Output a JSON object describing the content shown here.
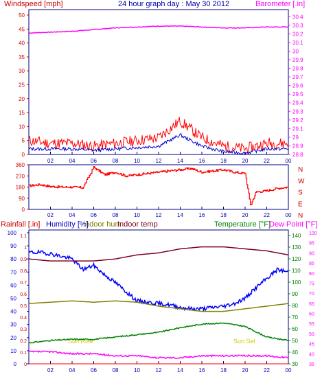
{
  "title": "24 hour graph day : May 30 2012",
  "hours": [
    "02",
    "04",
    "06",
    "08",
    "10",
    "12",
    "14",
    "16",
    "18",
    "20",
    "22",
    "00"
  ],
  "colors": {
    "wind": "#ff0000",
    "gust": "#ff0000",
    "avg": "#0000cc",
    "baro": "#ff00ff",
    "dir": "#ff0000",
    "humidity": "#0000ff",
    "indoor_hum": "#808000",
    "indoor_temp": "#800020",
    "temperature": "#008000",
    "dewpoint": "#ff00ff",
    "rain": "#ff0000",
    "axis_dark": "#000000",
    "frame": "#000080"
  },
  "chart_data": [
    {
      "type": "line",
      "panel": "wind-baro",
      "xlabel": "",
      "ylabel_left": "Windspeed [mph]",
      "ylabel_right": "Barometer [.in]",
      "y_left_ticks": [
        0,
        5,
        10,
        15,
        20,
        25,
        30,
        35,
        40,
        45,
        50
      ],
      "ylim_left": [
        0,
        50
      ],
      "y_right_ticks": [
        "28.8",
        "28.9",
        "29",
        "29.1",
        "29.2",
        "29.3",
        "29.4",
        "29.5",
        "29.6",
        "29.7",
        "29.8",
        "29.9",
        "30",
        "30.1",
        "30.2",
        "30.3",
        "30.4"
      ],
      "ylim_right": [
        28.8,
        30.45
      ],
      "series": [
        {
          "key": "barometer",
          "x": [
            0,
            2,
            4,
            6,
            8,
            10,
            12,
            14,
            16,
            18,
            20,
            22,
            24
          ],
          "y": [
            30.21,
            30.22,
            30.23,
            30.25,
            30.27,
            30.28,
            30.29,
            30.29,
            30.28,
            30.27,
            30.27,
            30.28,
            30.28
          ]
        },
        {
          "key": "gust",
          "x": [
            0,
            2,
            4,
            6,
            8,
            10,
            12,
            13,
            14,
            15,
            16,
            18,
            20,
            22,
            24
          ],
          "y": [
            5,
            4,
            4,
            3,
            4,
            5,
            6,
            9,
            12,
            9,
            6,
            3,
            2,
            4,
            4
          ]
        },
        {
          "key": "average",
          "x": [
            0,
            2,
            4,
            6,
            8,
            10,
            12,
            13,
            14,
            15,
            16,
            18,
            20,
            22,
            24
          ],
          "y": [
            2,
            2,
            2,
            1.5,
            2,
            2.5,
            3,
            5,
            7,
            5,
            3,
            1,
            0.5,
            2,
            2
          ]
        }
      ]
    },
    {
      "type": "line",
      "panel": "wind-direction",
      "y_ticks": [
        0,
        90,
        180,
        270,
        360
      ],
      "ylim": [
        0,
        360
      ],
      "compass": [
        "N",
        "W",
        "S",
        "E",
        "N"
      ],
      "series": [
        {
          "key": "direction",
          "x": [
            0,
            1,
            2,
            3,
            4,
            5,
            6,
            7,
            8,
            9,
            10,
            11,
            12,
            13,
            14,
            15,
            16,
            17,
            18,
            19,
            20,
            20.5,
            21,
            22,
            23,
            24
          ],
          "y": [
            190,
            200,
            185,
            180,
            180,
            175,
            340,
            280,
            300,
            270,
            280,
            290,
            300,
            310,
            320,
            330,
            300,
            310,
            320,
            300,
            290,
            30,
            140,
            150,
            170,
            180
          ]
        }
      ]
    },
    {
      "type": "line",
      "panel": "temp-hum-rain",
      "ylabel_rain": "Rainfall [.in]",
      "ylabel_humidity": "Humidity [%]",
      "ylabel_indoor_hum": "Indoor hum",
      "ylabel_indoor_temp": "Indoor temp",
      "ylabel_temperature": "Temperature [°F]",
      "ylabel_dewpoint": "Dew Point [°F]",
      "humidity_ticks": [
        0,
        10,
        20,
        30,
        40,
        50,
        60,
        70,
        80,
        90,
        100
      ],
      "rain_ticks": [
        "0",
        "0.1",
        "0.2",
        "0.3",
        "0.4",
        "0.5",
        "0.6",
        "0.7",
        "0.8",
        "0.9",
        "1",
        "1.1"
      ],
      "temperature_ticks": [
        30,
        40,
        50,
        60,
        70,
        80,
        90,
        100,
        110,
        120,
        130,
        140
      ],
      "dewpoint_ticks": [
        35,
        40,
        45,
        50,
        55,
        60,
        65,
        70,
        75,
        80,
        85,
        90,
        95,
        100
      ],
      "annotations": [
        "Sun Rise",
        "Sun Set"
      ],
      "series": [
        {
          "key": "humidity",
          "x": [
            0,
            1,
            2,
            3,
            4,
            5,
            6,
            7,
            8,
            9,
            10,
            11,
            12,
            13,
            14,
            15,
            16,
            17,
            18,
            19,
            20,
            21,
            22,
            23,
            24
          ],
          "y": [
            85,
            85,
            84,
            82,
            80,
            72,
            75,
            68,
            62,
            55,
            48,
            47,
            46,
            45,
            43,
            42,
            42,
            43,
            44,
            46,
            50,
            58,
            65,
            72,
            70
          ]
        },
        {
          "key": "indoor_humidity",
          "x": [
            0,
            2,
            4,
            6,
            8,
            10,
            12,
            14,
            16,
            18,
            20,
            22,
            24
          ],
          "y": [
            46,
            47,
            48,
            47,
            48,
            47,
            44,
            42,
            40,
            40,
            42,
            44,
            46
          ]
        },
        {
          "key": "indoor_temp",
          "x": [
            0,
            2,
            4,
            6,
            8,
            10,
            12,
            14,
            16,
            18,
            20,
            22,
            24
          ],
          "y": [
            87,
            86,
            86,
            86,
            87,
            89,
            90,
            92,
            93,
            93,
            92,
            91,
            89
          ]
        },
        {
          "key": "temperature",
          "x": [
            0,
            2,
            4,
            6,
            8,
            10,
            12,
            14,
            16,
            18,
            20,
            22,
            24
          ],
          "y": [
            48,
            50,
            51,
            51,
            53,
            55,
            57,
            61,
            64,
            65,
            62,
            53,
            50
          ]
        },
        {
          "key": "dewpoint",
          "x": [
            0,
            2,
            4,
            6,
            8,
            10,
            12,
            14,
            16,
            18,
            20,
            22,
            24
          ],
          "y": [
            41,
            41,
            40,
            40,
            39,
            39,
            38,
            38,
            39,
            39,
            39,
            39,
            38
          ]
        },
        {
          "key": "rain",
          "x": [
            0,
            24
          ],
          "y": [
            0,
            0
          ]
        }
      ]
    }
  ]
}
